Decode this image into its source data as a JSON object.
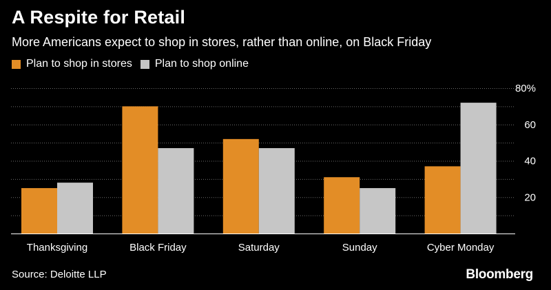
{
  "title": "A Respite for Retail",
  "subtitle": "More Americans expect to shop in stores, rather than online, on Black Friday",
  "source": "Source: Deloitte LLP",
  "brand": "Bloomberg",
  "colors": {
    "background": "#000000",
    "stores": "#e38d26",
    "online": "#c6c6c6",
    "grid": "#6e6e6e",
    "axis": "#ffffff"
  },
  "chart_data": {
    "type": "bar",
    "title": "A Respite for Retail",
    "subtitle": "More Americans expect to shop in stores, rather than online, on Black Friday",
    "categories": [
      "Thanksgiving",
      "Black Friday",
      "Saturday",
      "Sunday",
      "Cyber Monday"
    ],
    "series": [
      {
        "name": "Plan to shop in stores",
        "values": [
          25,
          70,
          52,
          31,
          37
        ]
      },
      {
        "name": "Plan to shop online",
        "values": [
          28,
          47,
          47,
          25,
          72
        ]
      }
    ],
    "ylim": [
      0,
      80
    ],
    "yticks": [
      {
        "value": 20,
        "label": "20"
      },
      {
        "value": 40,
        "label": "40"
      },
      {
        "value": 60,
        "label": "60"
      },
      {
        "value": 80,
        "label": "80%"
      }
    ],
    "grid": true,
    "legend_position": "top-left",
    "xlabel": "",
    "ylabel": ""
  }
}
